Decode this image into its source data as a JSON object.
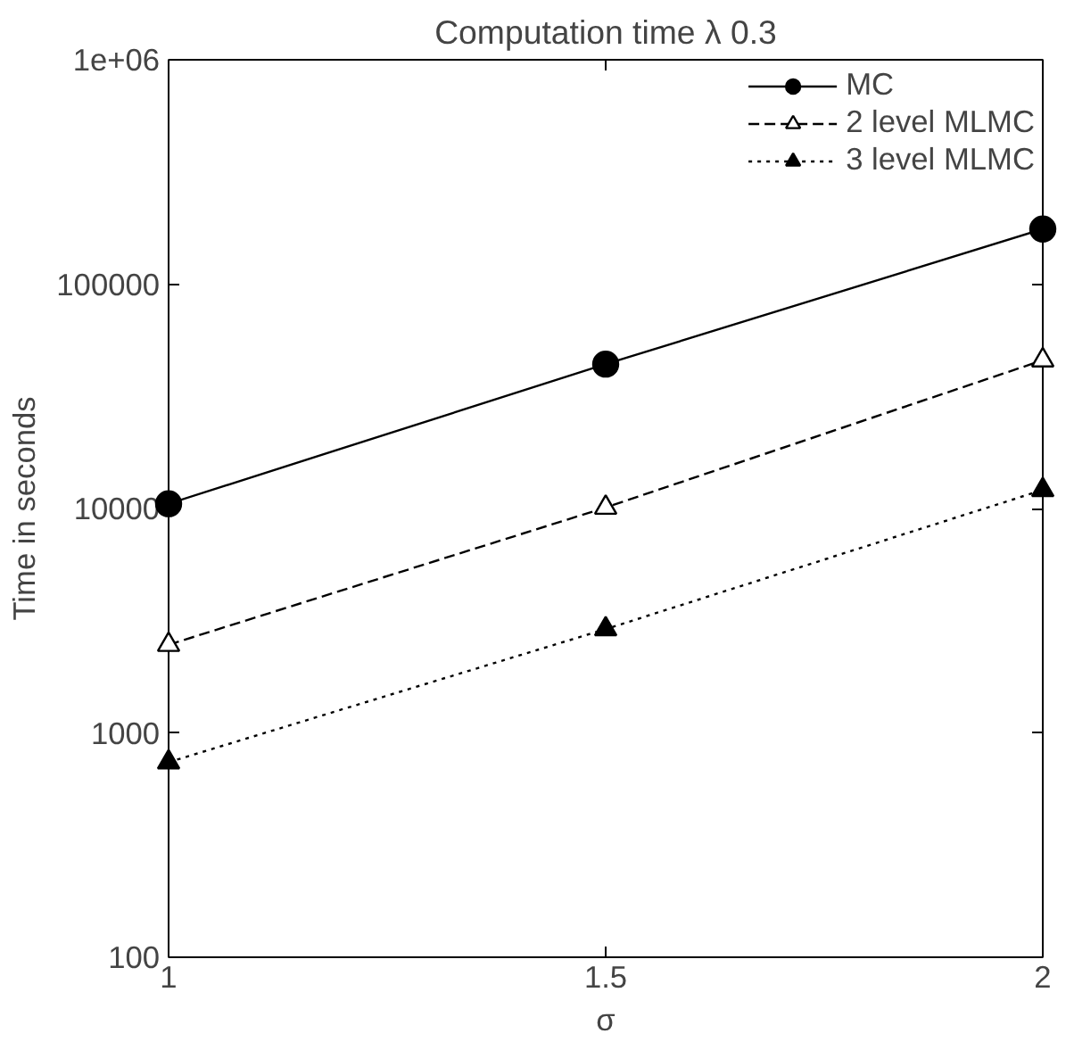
{
  "chart_data": {
    "type": "line",
    "title": "Computation time λ 0.3",
    "xlabel": "σ",
    "ylabel": "Time in seconds",
    "x": [
      1,
      1.5,
      2
    ],
    "series": [
      {
        "name": "MC",
        "color": "#000000",
        "marker": "circle",
        "line_style": "solid",
        "values": [
          10500,
          44000,
          176000
        ]
      },
      {
        "name": "2 level MLMC",
        "color": "#000000",
        "marker": "triangle",
        "line_style": "dashed",
        "values": [
          2470,
          10100,
          45800
        ]
      },
      {
        "name": "3 level MLMC",
        "color": "#000000",
        "marker": "triangle",
        "line_style": "dotted",
        "values": [
          740,
          2900,
          12100
        ]
      }
    ],
    "log": "y",
    "grid": false,
    "legend": "top right",
    "xlim": [
      1,
      2
    ],
    "xticks": [
      1,
      1.5,
      2
    ],
    "ylim": [
      100,
      1000000
    ],
    "yticks": [
      100,
      1000,
      10000,
      100000,
      {
        "value": 1000000,
        "label": "1e+06"
      }
    ]
  }
}
